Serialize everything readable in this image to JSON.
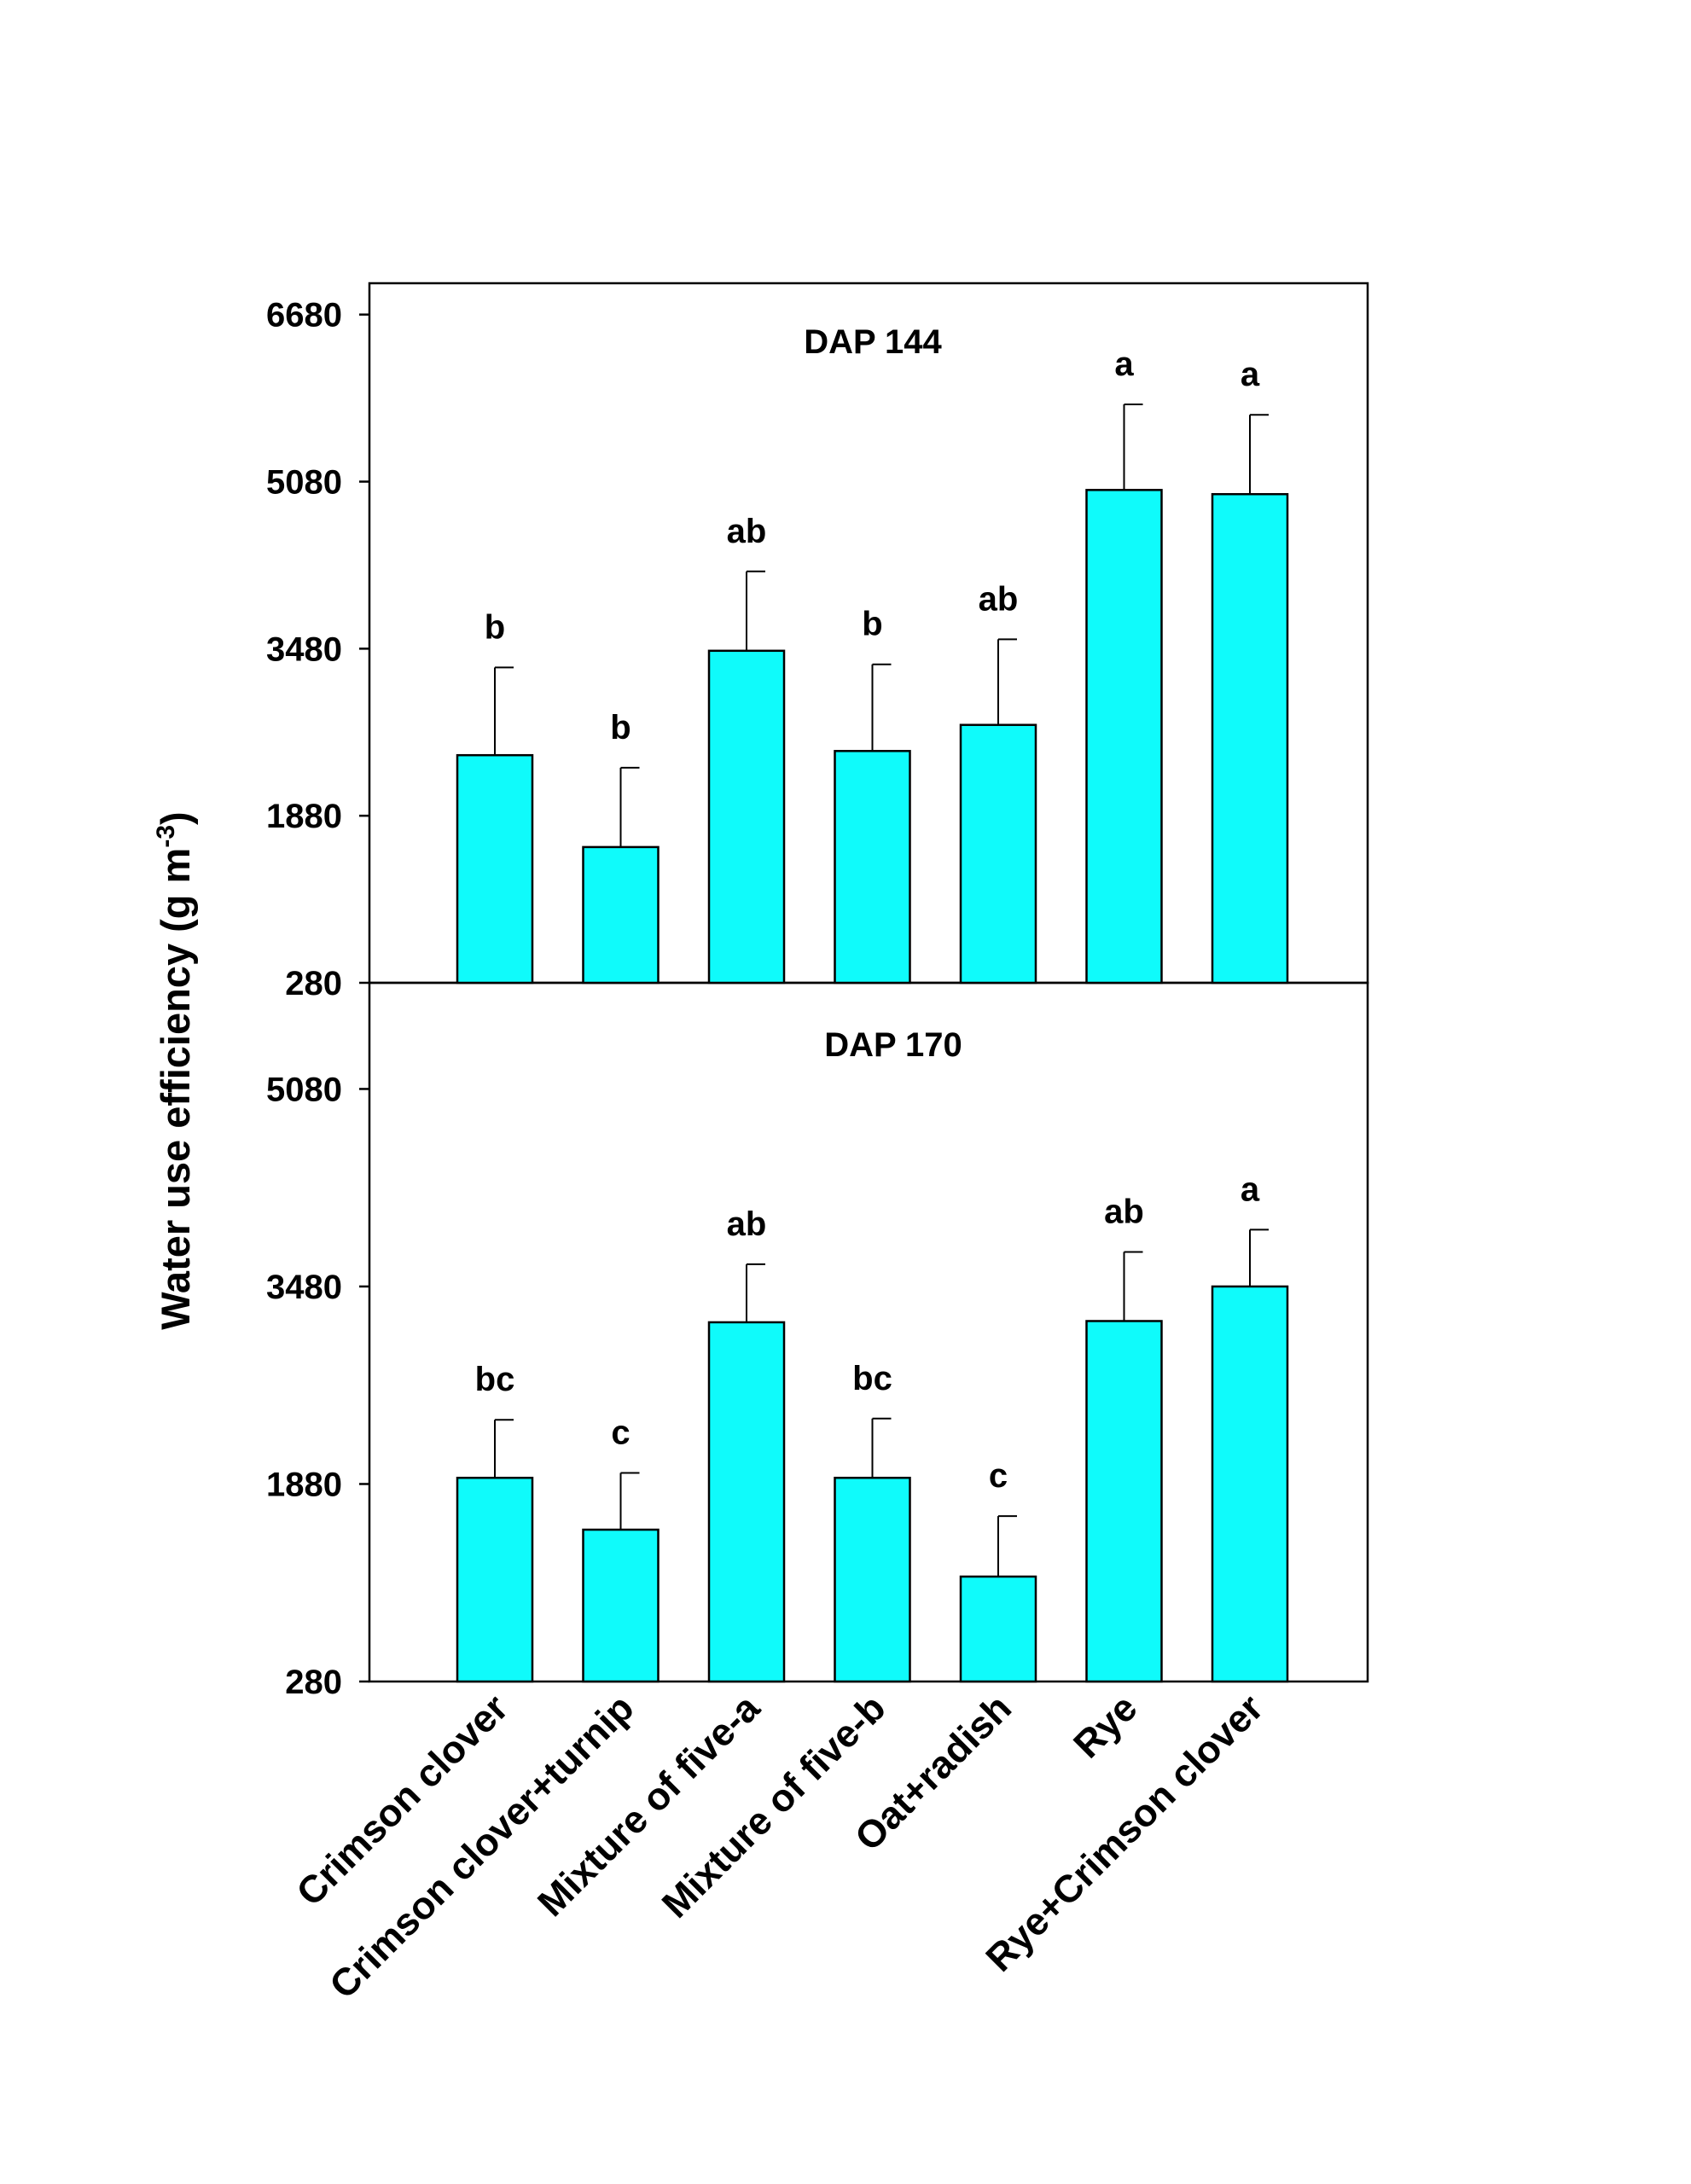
{
  "chart_data": [
    {
      "type": "bar",
      "title": "DAP 144",
      "categories": [
        "Crimson clover",
        "Crimson clover+turnip",
        "Mixture of five-a",
        "Mixture of five-b",
        "Oat+radish",
        "Rye",
        "Rye+Crimson clover"
      ],
      "values": [
        2460,
        1580,
        3460,
        2500,
        2750,
        5000,
        4960
      ],
      "error_upper": [
        3300,
        2340,
        4220,
        3330,
        3570,
        5820,
        5720
      ],
      "significance_letters": [
        "b",
        "b",
        "ab",
        "b",
        "ab",
        "a",
        "a"
      ],
      "ylim": [
        280,
        6980
      ],
      "yticks": [
        280,
        1880,
        3480,
        5080,
        6680
      ],
      "ytick_labels": [
        "280",
        "1880",
        "3480",
        "5080",
        "6680"
      ],
      "bar_color": "#0ffbfb"
    },
    {
      "type": "bar",
      "title": "DAP 170",
      "categories": [
        "Crimson clover",
        "Crimson clover+turnip",
        "Mixture of five-a",
        "Mixture of five-b",
        "Oat+radish",
        "Rye",
        "Rye+Crimson clover"
      ],
      "values": [
        1930,
        1510,
        3190,
        1930,
        1130,
        3200,
        3480
      ],
      "error_upper": [
        2400,
        1970,
        3660,
        2410,
        1620,
        3760,
        3940
      ],
      "significance_letters": [
        "bc",
        "c",
        "ab",
        "bc",
        "c",
        "ab",
        "a"
      ],
      "ylim": [
        280,
        5940
      ],
      "yticks": [
        280,
        1880,
        3480,
        5080
      ],
      "ytick_labels": [
        "280",
        "1880",
        "3480",
        "5080"
      ],
      "bar_color": "#0ffbfb"
    }
  ],
  "y_axis_title": {
    "main": "Water use efficiency (g m",
    "superscript": "-3",
    "close": ")"
  }
}
